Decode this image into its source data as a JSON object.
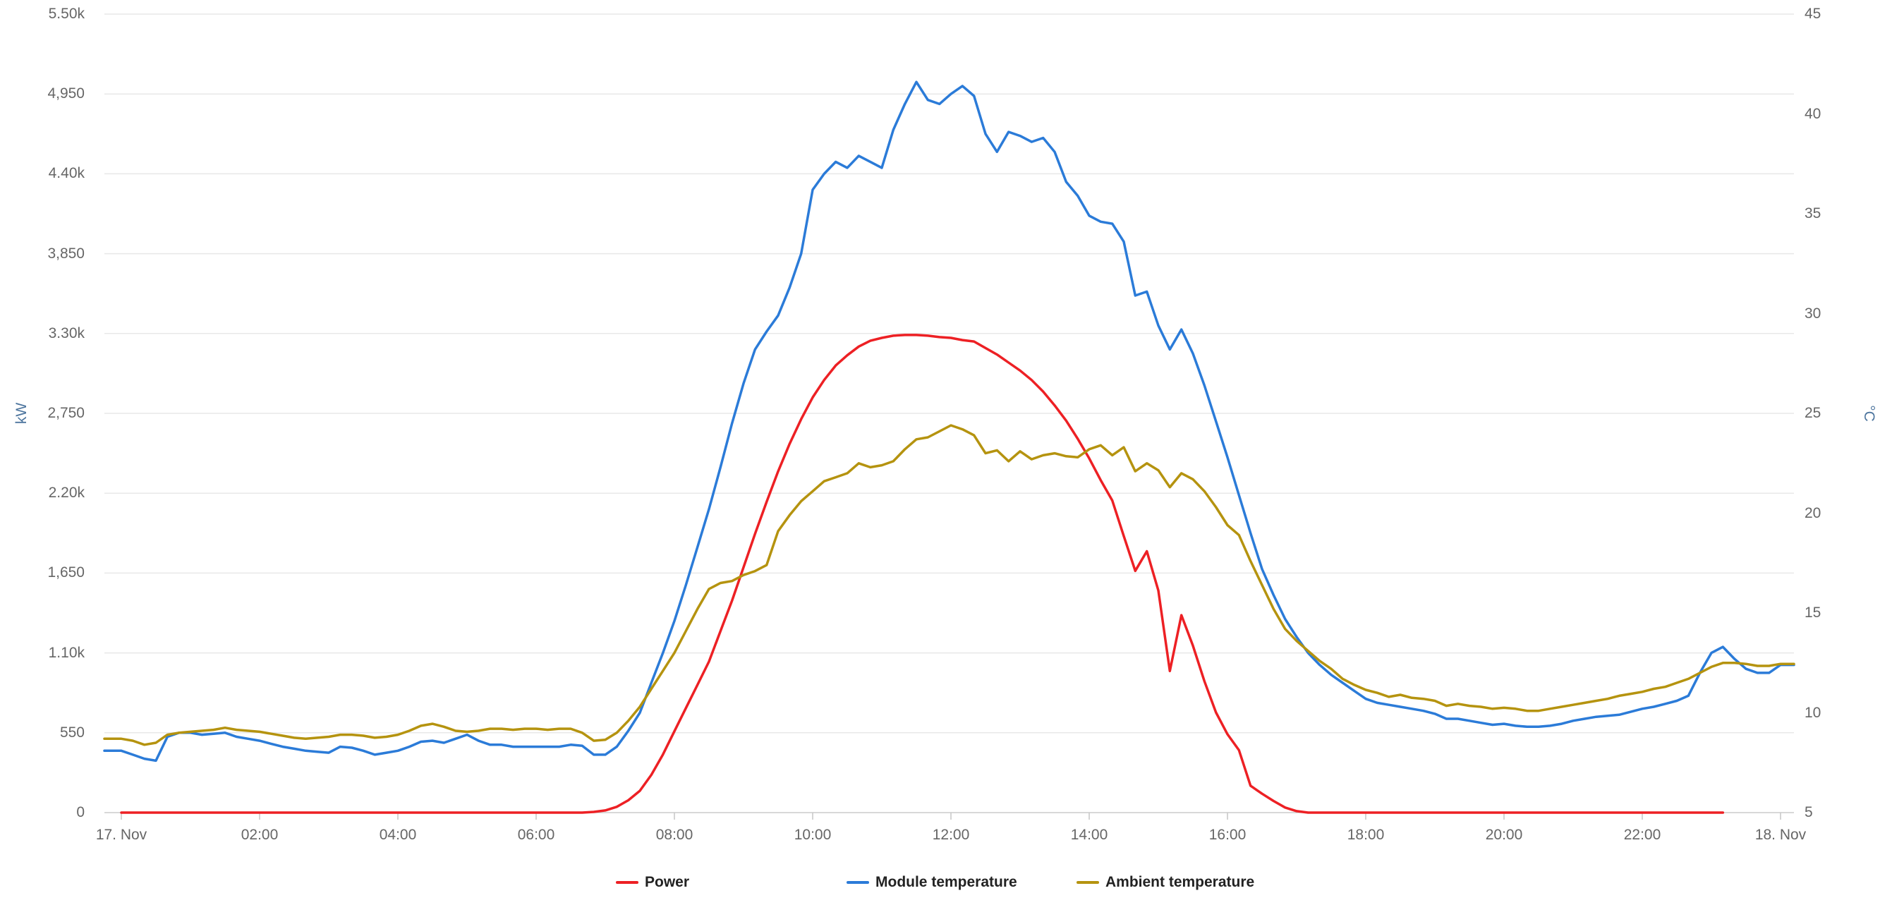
{
  "chart_data": {
    "type": "line",
    "x_axis": {
      "tick_labels": [
        "17. Nov",
        "02:00",
        "04:00",
        "06:00",
        "08:00",
        "10:00",
        "12:00",
        "14:00",
        "16:00",
        "18:00",
        "20:00",
        "22:00",
        "18. Nov"
      ],
      "range": "17. Nov 00:00 to 18. Nov 00:00",
      "grid": false
    },
    "y_axis_left": {
      "title": "kW",
      "tick_labels": [
        "0",
        "550",
        "1.10k",
        "1,650",
        "2.20k",
        "2,750",
        "3.30k",
        "3,850",
        "4.40k",
        "4,950",
        "5.50k"
      ],
      "ylim": [
        0,
        5500
      ],
      "grid": true
    },
    "y_axis_right": {
      "title": "°C",
      "tick_labels": [
        "5",
        "10",
        "15",
        "20",
        "25",
        "30",
        "35",
        "40",
        "45"
      ],
      "ylim": [
        5,
        45
      ],
      "grid": false
    },
    "legend_position": "bottom-center",
    "sampling": {
      "start": "00:00",
      "interval_minutes": 10,
      "points": 145
    },
    "series": [
      {
        "name": "Power",
        "unit": "kW",
        "axis": "left",
        "color": "#ed2024",
        "values": [
          0,
          0,
          0,
          0,
          0,
          0,
          0,
          0,
          0,
          0,
          0,
          0,
          0,
          0,
          0,
          0,
          0,
          0,
          0,
          0,
          0,
          0,
          0,
          0,
          0,
          0,
          0,
          0,
          0,
          0,
          0,
          0,
          0,
          0,
          0,
          0,
          0,
          0,
          0,
          0,
          0,
          5,
          15,
          40,
          85,
          150,
          260,
          400,
          560,
          720,
          880,
          1040,
          1250,
          1460,
          1690,
          1920,
          2140,
          2350,
          2540,
          2710,
          2860,
          2980,
          3080,
          3150,
          3210,
          3250,
          3270,
          3285,
          3290,
          3290,
          3285,
          3275,
          3270,
          3255,
          3245,
          3200,
          3155,
          3100,
          3045,
          2980,
          2900,
          2805,
          2700,
          2575,
          2440,
          2290,
          2150,
          1905,
          1665,
          1800,
          1530,
          975,
          1360,
          1150,
          905,
          690,
          540,
          430,
          185,
          130,
          80,
          35,
          10,
          0,
          0,
          0,
          0,
          0,
          0,
          0,
          0,
          0,
          0,
          0,
          0,
          0,
          0,
          0,
          0,
          0,
          0,
          0,
          0,
          0,
          0,
          0,
          0,
          0,
          0,
          0,
          0,
          0,
          0,
          0,
          0,
          0,
          0,
          0,
          0,
          0
        ]
      },
      {
        "name": "Module temperature",
        "unit": "°C",
        "axis": "right",
        "color": "#2b7bd8",
        "values": [
          8.1,
          7.9,
          7.7,
          7.6,
          8.8,
          9.0,
          9.0,
          8.9,
          8.95,
          9.0,
          8.8,
          8.7,
          8.6,
          8.45,
          8.3,
          8.2,
          8.1,
          8.05,
          8.0,
          8.3,
          8.25,
          8.1,
          7.9,
          8.0,
          8.1,
          8.3,
          8.55,
          8.6,
          8.5,
          8.7,
          8.9,
          8.6,
          8.4,
          8.4,
          8.3,
          8.3,
          8.3,
          8.3,
          8.3,
          8.4,
          8.35,
          7.9,
          7.9,
          8.3,
          9.1,
          10.0,
          11.5,
          13.0,
          14.6,
          16.4,
          18.3,
          20.2,
          22.3,
          24.5,
          26.5,
          28.2,
          29.1,
          29.9,
          31.3,
          33.0,
          36.2,
          37.0,
          37.6,
          37.3,
          37.9,
          37.6,
          37.3,
          39.2,
          40.5,
          41.6,
          40.7,
          40.5,
          41.0,
          41.4,
          40.9,
          39.0,
          38.1,
          39.1,
          38.9,
          38.6,
          38.8,
          38.1,
          36.6,
          35.9,
          34.9,
          34.6,
          34.5,
          33.6,
          30.9,
          31.1,
          29.4,
          28.2,
          29.2,
          28.0,
          26.4,
          24.6,
          22.8,
          20.9,
          19.0,
          17.2,
          15.9,
          14.7,
          13.8,
          13.0,
          12.4,
          11.9,
          11.5,
          11.1,
          10.7,
          10.5,
          10.4,
          10.3,
          10.2,
          10.1,
          9.95,
          9.7,
          9.7,
          9.6,
          9.5,
          9.4,
          9.45,
          9.35,
          9.3,
          9.3,
          9.35,
          9.45,
          9.6,
          9.7,
          9.8,
          9.85,
          9.9,
          10.05,
          10.2,
          10.3,
          10.45,
          10.6,
          10.85,
          12.0,
          13.0,
          13.3,
          12.7,
          12.2,
          12.0,
          12.0,
          12.4
        ]
      },
      {
        "name": "Ambient temperature",
        "unit": "°C",
        "axis": "right",
        "color": "#b5930f",
        "values": [
          8.7,
          8.6,
          8.4,
          8.5,
          8.9,
          9.0,
          9.05,
          9.1,
          9.15,
          9.25,
          9.15,
          9.1,
          9.05,
          8.95,
          8.85,
          8.75,
          8.7,
          8.75,
          8.8,
          8.9,
          8.9,
          8.85,
          8.75,
          8.8,
          8.9,
          9.1,
          9.35,
          9.45,
          9.3,
          9.1,
          9.05,
          9.1,
          9.2,
          9.2,
          9.15,
          9.2,
          9.2,
          9.15,
          9.2,
          9.2,
          9.0,
          8.6,
          8.65,
          9.0,
          9.6,
          10.3,
          11.2,
          12.1,
          13.0,
          14.1,
          15.2,
          16.2,
          16.5,
          16.6,
          16.9,
          17.1,
          17.4,
          19.1,
          19.9,
          20.6,
          21.1,
          21.6,
          21.8,
          22.0,
          22.5,
          22.3,
          22.4,
          22.6,
          23.2,
          23.7,
          23.8,
          24.1,
          24.4,
          24.2,
          23.9,
          23.0,
          23.15,
          22.6,
          23.1,
          22.7,
          22.9,
          23.0,
          22.85,
          22.8,
          23.2,
          23.4,
          22.9,
          23.3,
          22.1,
          22.5,
          22.15,
          21.3,
          22.0,
          21.7,
          21.1,
          20.3,
          19.4,
          18.9,
          17.6,
          16.4,
          15.2,
          14.2,
          13.6,
          13.1,
          12.6,
          12.2,
          11.7,
          11.4,
          11.15,
          11.0,
          10.8,
          10.9,
          10.75,
          10.7,
          10.6,
          10.35,
          10.45,
          10.35,
          10.3,
          10.2,
          10.25,
          10.2,
          10.1,
          10.1,
          10.2,
          10.3,
          10.4,
          10.5,
          10.6,
          10.7,
          10.85,
          10.95,
          11.05,
          11.2,
          11.3,
          11.5,
          11.7,
          12.0,
          12.3,
          12.5,
          12.5,
          12.45,
          12.35,
          12.35,
          12.45
        ]
      }
    ]
  },
  "legend": {
    "items": [
      {
        "label": "Power",
        "color": "#ed2024"
      },
      {
        "label": "Module temperature",
        "color": "#2b7bd8"
      },
      {
        "label": "Ambient temperature",
        "color": "#b5930f"
      }
    ]
  },
  "colors": {
    "gridline": "#e8e8e8",
    "axis_line": "#cccccc",
    "tick_mark": "#c6c6c6",
    "axis_label": "#666666",
    "axis_title": "#4d759e",
    "background": "#ffffff"
  }
}
